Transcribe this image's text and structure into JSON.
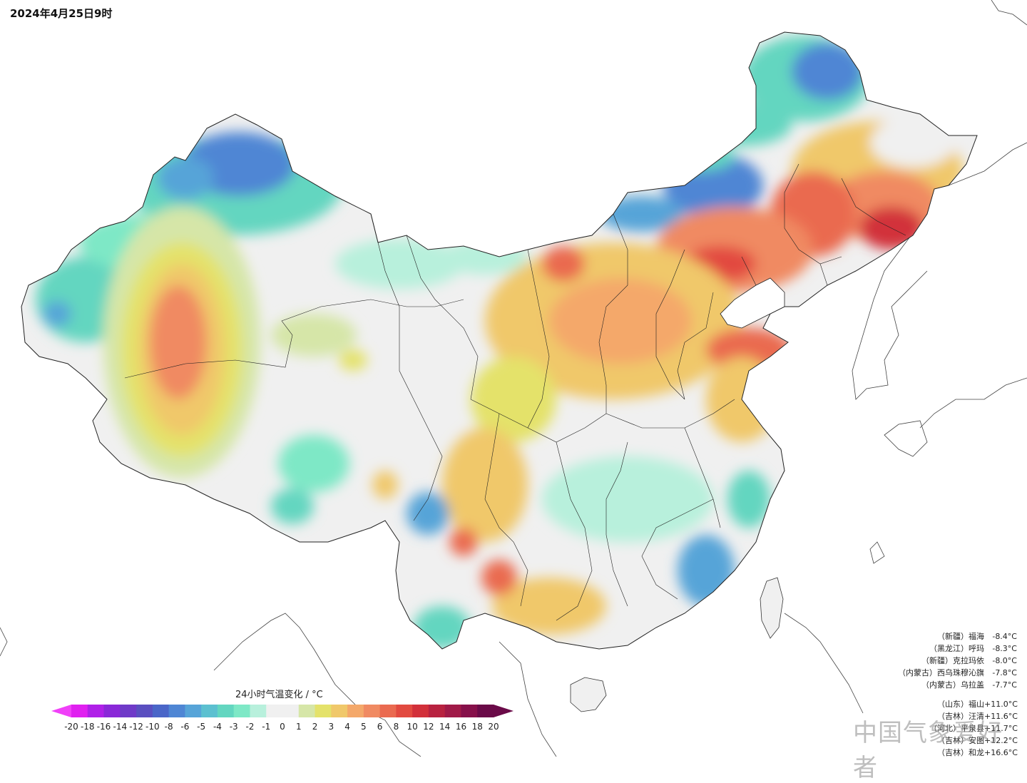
{
  "title": "2024年4月25日9时",
  "legend": {
    "title": "24小时气温变化 / °C",
    "ticks": [
      "-20",
      "-18",
      "-16",
      "-14",
      "-12",
      "-10",
      "-8",
      "-6",
      "-5",
      "-4",
      "-3",
      "-2",
      "-1",
      "0",
      "1",
      "2",
      "3",
      "4",
      "5",
      "6",
      "8",
      "10",
      "12",
      "14",
      "16",
      "18",
      "20"
    ],
    "colors": [
      "#e020f0",
      "#b020e8",
      "#8a28d8",
      "#6f3ac8",
      "#5a4fc0",
      "#4a66c8",
      "#4f86d4",
      "#57a4d8",
      "#5cc0d0",
      "#63d6c0",
      "#7ee8c6",
      "#b8f0dc",
      "#f0f0f0",
      "#f0f0f0",
      "#d6e6a8",
      "#e4e26a",
      "#f0c86a",
      "#f4a86a",
      "#f08a62",
      "#ea6a50",
      "#e24a40",
      "#d2303a",
      "#b82240",
      "#a01a48",
      "#86104a",
      "#6a0a48"
    ],
    "low_color": "#f040f8",
    "high_color": "#6a0a48"
  },
  "stations_min": [
    {
      "region": "（新疆）",
      "name": "福海",
      "value": "-8.4°C"
    },
    {
      "region": "（黑龙江）",
      "name": "呼玛",
      "value": "-8.3°C"
    },
    {
      "region": "（新疆）",
      "name": "克拉玛依",
      "value": "-8.0°C"
    },
    {
      "region": "（内蒙古）",
      "name": "西乌珠穆沁旗",
      "value": "-7.8°C"
    },
    {
      "region": "（内蒙古）",
      "name": "乌拉盖",
      "value": "-7.7°C"
    }
  ],
  "stations_max": [
    {
      "region": "（山东）",
      "name": "福山",
      "value": "+11.0°C"
    },
    {
      "region": "（吉林）",
      "name": "汪清",
      "value": "+11.6°C"
    },
    {
      "region": "（河北）",
      "name": "平泉县",
      "value": "+11.7°C"
    },
    {
      "region": "（吉林）",
      "name": "安图",
      "value": "+12.2°C"
    },
    {
      "region": "（吉林）",
      "name": "和龙",
      "value": "+16.6°C"
    }
  ],
  "watermark": "中国气象爱好者"
}
